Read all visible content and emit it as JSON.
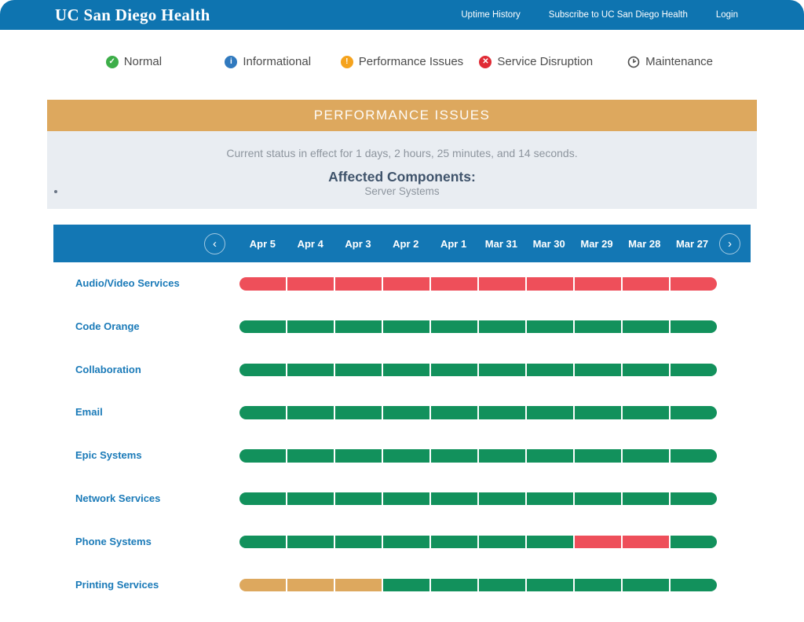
{
  "header": {
    "logo": "UC San Diego Health",
    "nav": [
      {
        "label": "Uptime History"
      },
      {
        "label": "Subscribe to UC San Diego Health"
      },
      {
        "label": "Login"
      }
    ]
  },
  "legend": [
    {
      "label": "Normal",
      "icon": "check-circle-icon",
      "color": "#3dae49"
    },
    {
      "label": "Informational",
      "icon": "info-circle-icon",
      "color": "#3079be"
    },
    {
      "label": "Performance Issues",
      "icon": "exclamation-circle-icon",
      "color": "#f5a31d"
    },
    {
      "label": "Service Disruption",
      "icon": "x-circle-icon",
      "color": "#e02b35"
    },
    {
      "label": "Maintenance",
      "icon": "clock-icon",
      "color": "#4c4c4c"
    }
  ],
  "status_banner": {
    "title": "PERFORMANCE ISSUES",
    "banner_color": "#dda85e",
    "duration_text": "Current status in effect for 1 days, 2 hours, 25 minutes, and 14 seconds.",
    "affected_heading": "Affected Components:",
    "affected_components": [
      "Server Systems"
    ]
  },
  "timeline": {
    "prev_label": "‹",
    "next_label": "›",
    "dates": [
      "Apr 5",
      "Apr 4",
      "Apr 3",
      "Apr 2",
      "Apr 1",
      "Mar 31",
      "Mar 30",
      "Mar 29",
      "Mar 28",
      "Mar 27"
    ]
  },
  "status_colors": {
    "normal": "#12915c",
    "disruption": "#ee4f5a",
    "performance": "#dda85e"
  },
  "services": [
    {
      "name": "Audio/Video Services",
      "segments": [
        "disruption",
        "disruption",
        "disruption",
        "disruption",
        "disruption",
        "disruption",
        "disruption",
        "disruption",
        "disruption",
        "disruption"
      ]
    },
    {
      "name": "Code Orange",
      "segments": [
        "normal",
        "normal",
        "normal",
        "normal",
        "normal",
        "normal",
        "normal",
        "normal",
        "normal",
        "normal"
      ]
    },
    {
      "name": "Collaboration",
      "segments": [
        "normal",
        "normal",
        "normal",
        "normal",
        "normal",
        "normal",
        "normal",
        "normal",
        "normal",
        "normal"
      ]
    },
    {
      "name": "Email",
      "segments": [
        "normal",
        "normal",
        "normal",
        "normal",
        "normal",
        "normal",
        "normal",
        "normal",
        "normal",
        "normal"
      ]
    },
    {
      "name": "Epic Systems",
      "segments": [
        "normal",
        "normal",
        "normal",
        "normal",
        "normal",
        "normal",
        "normal",
        "normal",
        "normal",
        "normal"
      ]
    },
    {
      "name": "Network Services",
      "segments": [
        "normal",
        "normal",
        "normal",
        "normal",
        "normal",
        "normal",
        "normal",
        "normal",
        "normal",
        "normal"
      ]
    },
    {
      "name": "Phone Systems",
      "segments": [
        "normal",
        "normal",
        "normal",
        "normal",
        "normal",
        "normal",
        "normal",
        "disruption",
        "disruption",
        "normal"
      ]
    },
    {
      "name": "Printing Services",
      "segments": [
        "performance",
        "performance",
        "performance",
        "normal",
        "normal",
        "normal",
        "normal",
        "normal",
        "normal",
        "normal"
      ]
    }
  ]
}
